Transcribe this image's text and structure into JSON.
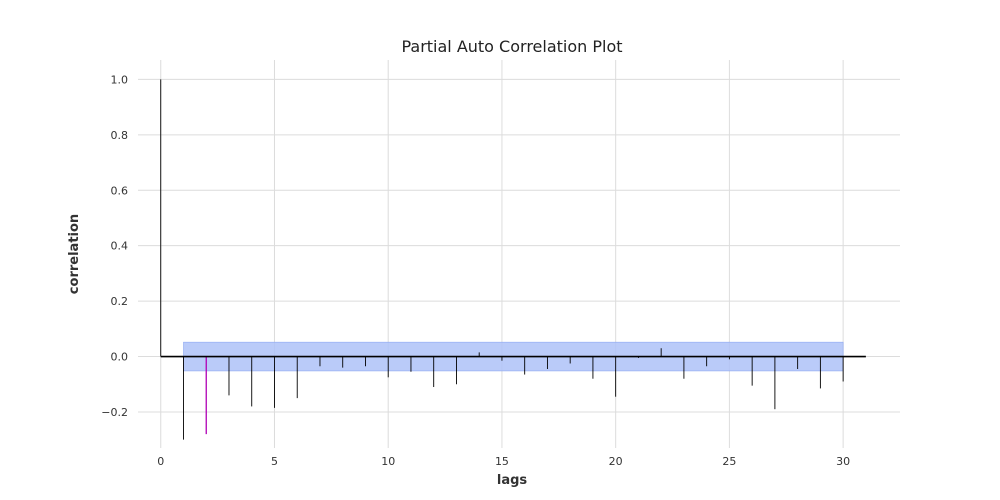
{
  "chart_data": {
    "type": "bar",
    "title": "Partial Auto Correlation Plot",
    "xlabel": "lags",
    "ylabel": "correlation",
    "xlim": [
      -1.0,
      32.5
    ],
    "ylim": [
      -0.33,
      1.07
    ],
    "xticks": [
      0,
      5,
      10,
      15,
      20,
      25,
      30
    ],
    "yticks": [
      -0.2,
      0.0,
      0.2,
      0.4,
      0.6,
      0.8,
      1.0
    ],
    "ytick_labels": [
      "−0.2",
      "0.0",
      "0.2",
      "0.4",
      "0.6",
      "0.8",
      "1.0"
    ],
    "grid": true,
    "lags": [
      0,
      1,
      2,
      3,
      4,
      5,
      6,
      7,
      8,
      9,
      10,
      11,
      12,
      13,
      14,
      15,
      16,
      17,
      18,
      19,
      20,
      21,
      22,
      23,
      24,
      25,
      26,
      27,
      28,
      29,
      30
    ],
    "values": [
      1.0,
      -0.3,
      -0.28,
      -0.14,
      -0.18,
      -0.185,
      -0.15,
      -0.035,
      -0.04,
      -0.035,
      -0.075,
      -0.055,
      -0.11,
      -0.1,
      0.015,
      -0.015,
      -0.065,
      -0.045,
      -0.025,
      -0.08,
      -0.145,
      -0.005,
      0.03,
      -0.08,
      -0.035,
      -0.01,
      -0.105,
      -0.19,
      -0.045,
      -0.115,
      -0.09
    ],
    "highlight_lag": 2,
    "confidence_band": {
      "lower": -0.052,
      "upper": 0.052,
      "x_start": 1,
      "x_end": 30
    },
    "zero_line_x_range": [
      0,
      31
    ],
    "colors": {
      "bar": "#000000",
      "highlight": "#b000b5",
      "band": "#aec2f8",
      "band_edge": "#7f9df0",
      "zero_line": "#000000",
      "grid": "#dcdcdc"
    }
  }
}
